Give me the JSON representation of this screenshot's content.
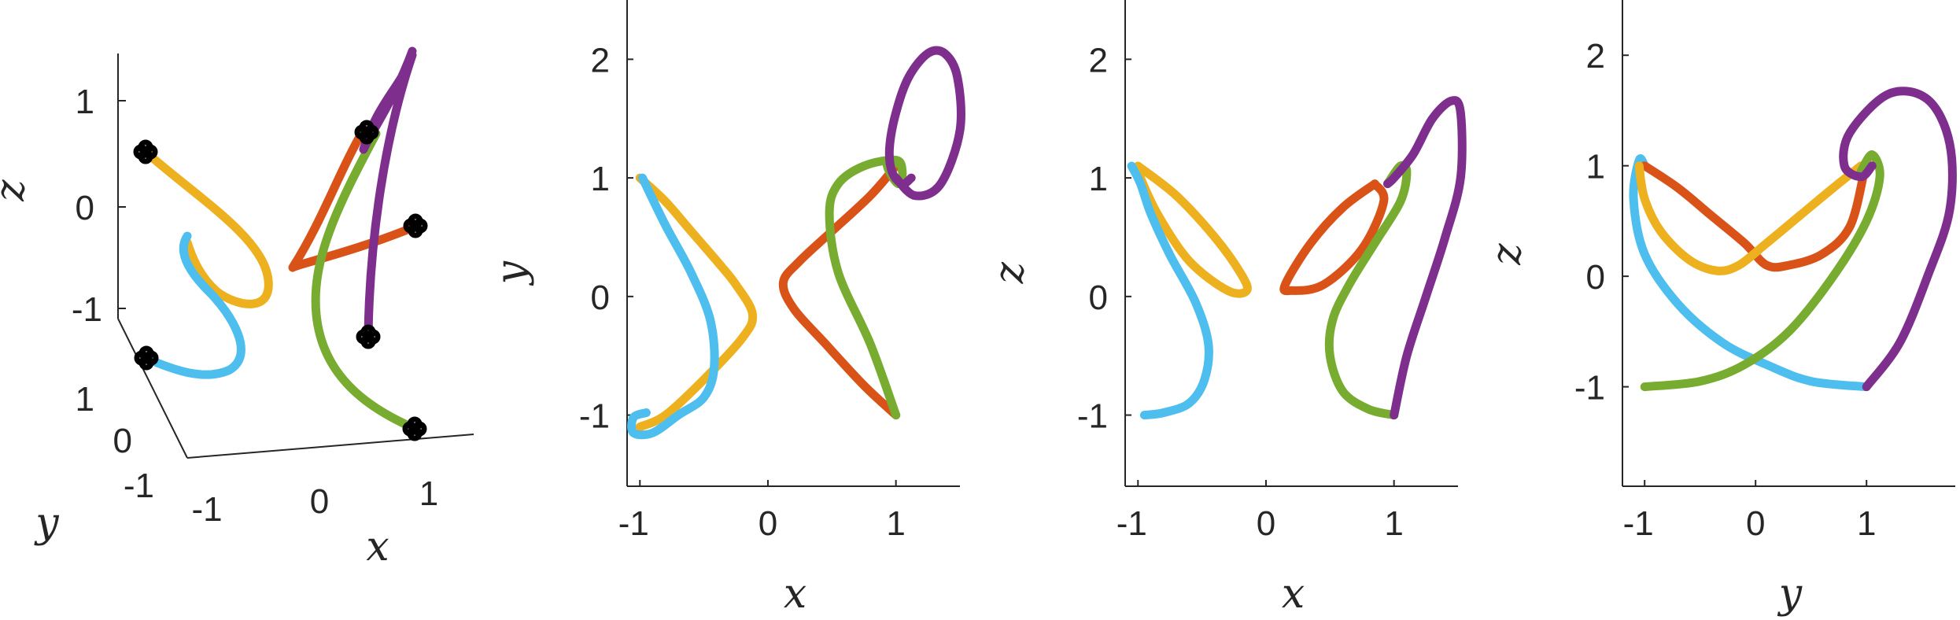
{
  "colors": {
    "orange": "#EDB120",
    "red": "#D95319",
    "green": "#77AC30",
    "purple": "#7E2F8E",
    "blue": "#4DBEEE",
    "axis": "#262626"
  },
  "chart_data": [
    {
      "type": "line",
      "view": "3d",
      "xlabel": "x",
      "ylabel": "y",
      "zlabel": "z",
      "x_ticks": [
        "-1",
        "0",
        "1"
      ],
      "y_ticks": [
        "-1",
        "0",
        "1"
      ],
      "z_ticks": [
        "-1",
        "0",
        "1"
      ],
      "grid": false,
      "markers": "black circles at curve endpoints"
    },
    {
      "type": "line",
      "view": "x-y projection",
      "xlabel": "x",
      "ylabel": "y",
      "xlim": [
        -1.1,
        1.5
      ],
      "ylim": [
        -1.6,
        2.5
      ],
      "x_ticks": [
        "-1",
        "0",
        "1"
      ],
      "y_ticks": [
        "-1",
        "0",
        "1",
        "2"
      ],
      "series_colors": [
        "orange",
        "blue",
        "red",
        "green",
        "purple"
      ],
      "series": [
        {
          "color": "orange",
          "x": [
            -1.0,
            -0.8,
            -0.6,
            -0.4,
            -0.25,
            -0.12,
            -0.2,
            -0.5,
            -0.8,
            -1.0
          ],
          "y": [
            1.0,
            0.8,
            0.55,
            0.3,
            0.1,
            -0.15,
            -0.35,
            -0.7,
            -1.0,
            -1.1
          ]
        },
        {
          "color": "blue",
          "x": [
            -0.98,
            -0.8,
            -0.6,
            -0.45,
            -0.42,
            -0.5,
            -0.7,
            -0.9,
            -1.05,
            -1.05,
            -0.95
          ],
          "y": [
            1.0,
            0.6,
            0.2,
            -0.2,
            -0.6,
            -0.85,
            -1.0,
            -1.15,
            -1.15,
            -1.02,
            -0.98
          ]
        },
        {
          "color": "red",
          "x": [
            1.0,
            0.8,
            0.5,
            0.25,
            0.12,
            0.2,
            0.45,
            0.75,
            1.0
          ],
          "y": [
            1.1,
            0.85,
            0.55,
            0.3,
            0.12,
            -0.1,
            -0.4,
            -0.75,
            -1.0
          ]
        },
        {
          "color": "green",
          "x": [
            1.0,
            0.8,
            0.55,
            0.48,
            0.55,
            0.75,
            1.0,
            1.05,
            1.02,
            0.95,
            0.93,
            1.02
          ],
          "y": [
            -1.0,
            -0.4,
            0.2,
            0.7,
            0.95,
            1.1,
            1.15,
            1.05,
            0.95,
            1.05,
            1.15,
            1.12
          ]
        },
        {
          "color": "purple",
          "x": [
            1.0,
            1.15,
            1.35,
            1.5,
            1.48,
            1.38,
            1.25,
            1.1,
            1.0,
            0.95,
            0.97,
            1.05,
            1.12
          ],
          "y": [
            1.0,
            0.85,
            0.95,
            1.4,
            1.85,
            2.05,
            2.05,
            1.85,
            1.55,
            1.25,
            1.05,
            0.95,
            1.0
          ]
        }
      ]
    },
    {
      "type": "line",
      "view": "x-z projection",
      "xlabel": "x",
      "ylabel": "z",
      "xlim": [
        -1.1,
        1.5
      ],
      "ylim": [
        -1.6,
        2.5
      ],
      "x_ticks": [
        "-1",
        "0",
        "1"
      ],
      "y_ticks": [
        "-1",
        "0",
        "1",
        "2"
      ],
      "series_colors": [
        "orange",
        "blue",
        "red",
        "green",
        "purple"
      ],
      "series": [
        {
          "color": "orange",
          "x": [
            -1.0,
            -0.7,
            -0.4,
            -0.2,
            -0.15,
            -0.3,
            -0.6,
            -0.85,
            -1.0
          ],
          "y": [
            1.1,
            0.85,
            0.5,
            0.2,
            0.05,
            0.05,
            0.3,
            0.7,
            1.05
          ]
        },
        {
          "color": "blue",
          "x": [
            -1.05,
            -0.98,
            -0.9,
            -0.75,
            -0.55,
            -0.45,
            -0.48,
            -0.6,
            -0.8,
            -0.95
          ],
          "y": [
            1.1,
            0.95,
            0.7,
            0.35,
            -0.05,
            -0.4,
            -0.7,
            -0.9,
            -0.98,
            -1.0
          ]
        },
        {
          "color": "red",
          "x": [
            0.85,
            0.6,
            0.35,
            0.15,
            0.2,
            0.45,
            0.75,
            0.92,
            0.85
          ],
          "y": [
            0.95,
            0.75,
            0.45,
            0.1,
            0.05,
            0.1,
            0.4,
            0.8,
            0.95
          ]
        },
        {
          "color": "green",
          "x": [
            1.0,
            0.8,
            0.6,
            0.5,
            0.52,
            0.65,
            0.85,
            1.05,
            1.1,
            1.05,
            0.95
          ],
          "y": [
            -1.0,
            -0.95,
            -0.8,
            -0.5,
            -0.2,
            0.1,
            0.45,
            0.8,
            1.05,
            1.1,
            0.95
          ]
        },
        {
          "color": "purple",
          "x": [
            1.0,
            1.1,
            1.25,
            1.4,
            1.52,
            1.52,
            1.45,
            1.3,
            1.15,
            1.0,
            0.95
          ],
          "y": [
            -1.0,
            -0.5,
            0.0,
            0.5,
            1.0,
            1.55,
            1.65,
            1.5,
            1.2,
            1.0,
            0.95
          ]
        }
      ]
    },
    {
      "type": "line",
      "view": "y-z projection",
      "xlabel": "y",
      "ylabel": "z",
      "xlim": [
        -1.2,
        1.8
      ],
      "ylim": [
        -1.9,
        2.5
      ],
      "x_ticks": [
        "-1",
        "0",
        "1"
      ],
      "y_ticks": [
        "-1",
        "0",
        "1",
        "2"
      ],
      "series_colors": [
        "blue",
        "red",
        "orange",
        "green",
        "purple"
      ],
      "series": [
        {
          "color": "blue",
          "x": [
            -1.0,
            -1.05,
            -1.1,
            -1.0,
            -0.7,
            -0.3,
            0.1,
            0.5,
            1.0
          ],
          "y": [
            1.0,
            1.05,
            0.7,
            0.2,
            -0.25,
            -0.6,
            -0.8,
            -0.95,
            -1.0
          ]
        },
        {
          "color": "red",
          "x": [
            -1.0,
            -0.7,
            -0.4,
            -0.1,
            0.1,
            0.3,
            0.6,
            0.85,
            0.98
          ],
          "y": [
            1.0,
            0.8,
            0.55,
            0.3,
            0.1,
            0.1,
            0.2,
            0.45,
            0.95
          ]
        },
        {
          "color": "orange",
          "x": [
            -1.05,
            -1.0,
            -0.85,
            -0.6,
            -0.35,
            -0.15,
            0.1,
            0.4,
            0.7,
            0.95
          ],
          "y": [
            1.0,
            0.7,
            0.4,
            0.15,
            0.05,
            0.1,
            0.3,
            0.55,
            0.8,
            1.0
          ]
        },
        {
          "color": "green",
          "x": [
            -1.0,
            -0.5,
            -0.1,
            0.3,
            0.7,
            1.0,
            1.12,
            1.05,
            0.95
          ],
          "y": [
            -1.0,
            -0.95,
            -0.8,
            -0.5,
            0.0,
            0.5,
            0.9,
            1.1,
            0.95
          ]
        },
        {
          "color": "purple",
          "x": [
            1.0,
            1.3,
            1.55,
            1.75,
            1.75,
            1.55,
            1.2,
            0.85,
            0.8,
            0.95,
            1.05
          ],
          "y": [
            -1.0,
            -0.6,
            0.0,
            0.6,
            1.2,
            1.6,
            1.65,
            1.3,
            1.0,
            0.9,
            1.0
          ]
        }
      ]
    }
  ]
}
